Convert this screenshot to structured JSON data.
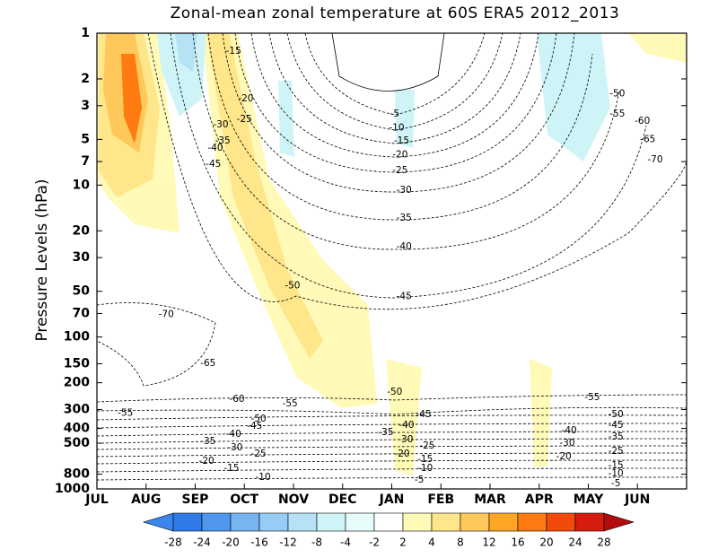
{
  "chart_data": {
    "type": "contour",
    "title": "Zonal-mean zonal temperature at 60S ERA5 2012_2013",
    "y_label": "Pressure Levels (hPa)",
    "xlim": [
      0,
      12
    ],
    "xticks": [
      {
        "value": 0,
        "label": "JUL"
      },
      {
        "value": 1,
        "label": "AUG"
      },
      {
        "value": 2,
        "label": "SEP"
      },
      {
        "value": 3,
        "label": "OCT"
      },
      {
        "value": 4,
        "label": "NOV"
      },
      {
        "value": 5,
        "label": "DEC"
      },
      {
        "value": 6,
        "label": "JAN"
      },
      {
        "value": 7,
        "label": "FEB"
      },
      {
        "value": 8,
        "label": "MAR"
      },
      {
        "value": 9,
        "label": "APR"
      },
      {
        "value": 10,
        "label": "MAY"
      },
      {
        "value": 11,
        "label": "JUN"
      }
    ],
    "ylim": [
      1000,
      1
    ],
    "log_y": true,
    "yticks": [
      1,
      2,
      3,
      5,
      7,
      10,
      20,
      30,
      50,
      70,
      100,
      150,
      200,
      300,
      400,
      500,
      800,
      1000
    ],
    "contour_labels": [
      {
        "value": -15,
        "x": 2.78,
        "p": 1.31
      },
      {
        "value": -20,
        "x": 3.03,
        "p": 2.7
      },
      {
        "value": -25,
        "x": 3.0,
        "p": 3.7
      },
      {
        "value": -30,
        "x": 2.52,
        "p": 4.0
      },
      {
        "value": -35,
        "x": 2.56,
        "p": 5.1
      },
      {
        "value": -40,
        "x": 2.41,
        "p": 5.7
      },
      {
        "value": -45,
        "x": 2.37,
        "p": 7.3
      },
      {
        "value": -5,
        "x": 6.06,
        "p": 3.4
      },
      {
        "value": -10,
        "x": 6.1,
        "p": 4.2
      },
      {
        "value": -15,
        "x": 6.2,
        "p": 5.1
      },
      {
        "value": -20,
        "x": 6.17,
        "p": 6.3
      },
      {
        "value": -25,
        "x": 6.17,
        "p": 8.0
      },
      {
        "value": -30,
        "x": 6.25,
        "p": 10.8
      },
      {
        "value": -35,
        "x": 6.25,
        "p": 16.5
      },
      {
        "value": -40,
        "x": 6.25,
        "p": 25.5
      },
      {
        "value": -45,
        "x": 6.25,
        "p": 54
      },
      {
        "value": -50,
        "x": 10.59,
        "p": 2.5
      },
      {
        "value": -55,
        "x": 10.59,
        "p": 3.4
      },
      {
        "value": -60,
        "x": 11.1,
        "p": 3.8
      },
      {
        "value": -65,
        "x": 11.21,
        "p": 5.0
      },
      {
        "value": -70,
        "x": 11.36,
        "p": 6.8
      },
      {
        "value": -50,
        "x": 3.98,
        "p": 46
      },
      {
        "value": -70,
        "x": 1.41,
        "p": 71
      },
      {
        "value": -65,
        "x": 2.26,
        "p": 149
      },
      {
        "value": -60,
        "x": 2.85,
        "p": 257
      },
      {
        "value": -55,
        "x": 3.93,
        "p": 275
      },
      {
        "value": -55,
        "x": 0.58,
        "p": 316
      },
      {
        "value": -50,
        "x": 6.06,
        "p": 230
      },
      {
        "value": -45,
        "x": 6.65,
        "p": 324
      },
      {
        "value": -55,
        "x": 10.08,
        "p": 250
      },
      {
        "value": -50,
        "x": 3.29,
        "p": 347
      },
      {
        "value": -45,
        "x": 3.21,
        "p": 386
      },
      {
        "value": -40,
        "x": 2.78,
        "p": 437
      },
      {
        "value": -35,
        "x": 2.26,
        "p": 487
      },
      {
        "value": -30,
        "x": 2.81,
        "p": 536
      },
      {
        "value": -25,
        "x": 3.29,
        "p": 589
      },
      {
        "value": -20,
        "x": 2.23,
        "p": 656
      },
      {
        "value": -15,
        "x": 2.74,
        "p": 732
      },
      {
        "value": -10,
        "x": 3.38,
        "p": 839
      },
      {
        "value": -40,
        "x": 6.3,
        "p": 381
      },
      {
        "value": -35,
        "x": 5.88,
        "p": 425
      },
      {
        "value": -30,
        "x": 6.28,
        "p": 474
      },
      {
        "value": -25,
        "x": 6.72,
        "p": 521
      },
      {
        "value": -20,
        "x": 6.21,
        "p": 589
      },
      {
        "value": -15,
        "x": 6.68,
        "p": 639
      },
      {
        "value": -10,
        "x": 6.68,
        "p": 732
      },
      {
        "value": -5,
        "x": 6.56,
        "p": 874
      },
      {
        "value": -50,
        "x": 10.56,
        "p": 324
      },
      {
        "value": -45,
        "x": 10.56,
        "p": 381
      },
      {
        "value": -40,
        "x": 9.61,
        "p": 414
      },
      {
        "value": -35,
        "x": 10.56,
        "p": 455
      },
      {
        "value": -30,
        "x": 9.57,
        "p": 500
      },
      {
        "value": -25,
        "x": 10.56,
        "p": 565
      },
      {
        "value": -20,
        "x": 9.5,
        "p": 614
      },
      {
        "value": -15,
        "x": 10.56,
        "p": 703
      },
      {
        "value": -10,
        "x": 10.56,
        "p": 794
      },
      {
        "value": -5,
        "x": 10.56,
        "p": 923
      }
    ],
    "colorbar": {
      "levels": [
        -28,
        -24,
        -20,
        -16,
        -12,
        -8,
        -4,
        -2,
        2,
        4,
        8,
        12,
        16,
        20,
        24,
        28
      ],
      "colors": [
        "#3a86ec",
        "#2f7be8",
        "#4f96ee",
        "#77b4f2",
        "#96ccf5",
        "#b5e2f5",
        "#cff4f7",
        "#e6fdfc",
        "#ffffff",
        "#fffab8",
        "#ffe68a",
        "#ffc85a",
        "#ffa526",
        "#ff7a10",
        "#f24a0a",
        "#d61c0c",
        "#b30c0c"
      ]
    }
  }
}
